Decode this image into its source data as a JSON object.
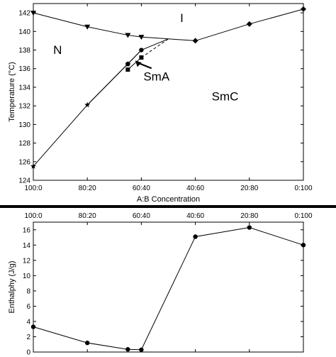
{
  "chart_data": [
    {
      "type": "line",
      "xlabel": "A:B Concentration",
      "ylabel": "Temperature (°C)",
      "x_ticks": [
        "100:0",
        "80:20",
        "60:40",
        "40:60",
        "20:80",
        "0:100"
      ],
      "ylim": [
        124,
        143
      ],
      "y_ticks": [
        124,
        126,
        128,
        130,
        132,
        134,
        136,
        138,
        140,
        142
      ],
      "series": [
        {
          "marker": "triangle-down",
          "dashed": false,
          "points": [
            [
              0,
              142.0
            ],
            [
              20,
              140.5
            ],
            [
              35,
              139.6
            ],
            [
              40,
              139.4
            ]
          ]
        },
        {
          "marker": "line",
          "dashed": false,
          "points": [
            [
              40,
              139.4
            ],
            [
              60,
              139.0
            ]
          ]
        },
        {
          "marker": "diamond",
          "dashed": false,
          "points": [
            [
              60,
              139.0
            ],
            [
              80,
              140.8
            ],
            [
              100,
              142.4
            ]
          ]
        },
        {
          "marker": "circle",
          "dashed": false,
          "points": [
            [
              35,
              136.5
            ],
            [
              40,
              138.0
            ]
          ]
        },
        {
          "marker": "line",
          "dashed": false,
          "points": [
            [
              20,
              132.1
            ],
            [
              40,
              138.0
            ],
            [
              50,
              139.2
            ]
          ]
        },
        {
          "marker": "square",
          "dashed": false,
          "points": [
            [
              35,
              135.9
            ],
            [
              40,
              137.2
            ]
          ]
        },
        {
          "marker": "line",
          "dashed": true,
          "points": [
            [
              40,
              137.2
            ],
            [
              50,
              139.2
            ]
          ]
        },
        {
          "marker": "star",
          "dashed": false,
          "points": [
            [
              0,
              125.5
            ],
            [
              20,
              132.1
            ],
            [
              35,
              136.5
            ]
          ]
        }
      ],
      "region_labels": [
        {
          "text": "I",
          "x": 55,
          "y": 141.0
        },
        {
          "text": "N",
          "x": 9,
          "y": 137.6
        },
        {
          "text": "SmC",
          "x": 71,
          "y": 132.6
        }
      ],
      "annotation": {
        "text": "SmA",
        "point": [
          38,
          136.8
        ]
      }
    },
    {
      "type": "line",
      "xlabel": "",
      "ylabel": "Enthalphy (J/g)",
      "x_ticks": [
        "100:0",
        "80:20",
        "60:40",
        "40:60",
        "20:80",
        "0:100"
      ],
      "ylim": [
        0,
        17
      ],
      "y_ticks": [
        0,
        2,
        4,
        6,
        8,
        10,
        12,
        14,
        16
      ],
      "series": [
        {
          "marker": "circle",
          "dashed": false,
          "points": [
            [
              0,
              3.3
            ],
            [
              20,
              1.2
            ],
            [
              35,
              0.35
            ],
            [
              40,
              0.3
            ],
            [
              60,
              15.1
            ],
            [
              80,
              16.3
            ],
            [
              100,
              14.0
            ]
          ]
        }
      ]
    }
  ]
}
